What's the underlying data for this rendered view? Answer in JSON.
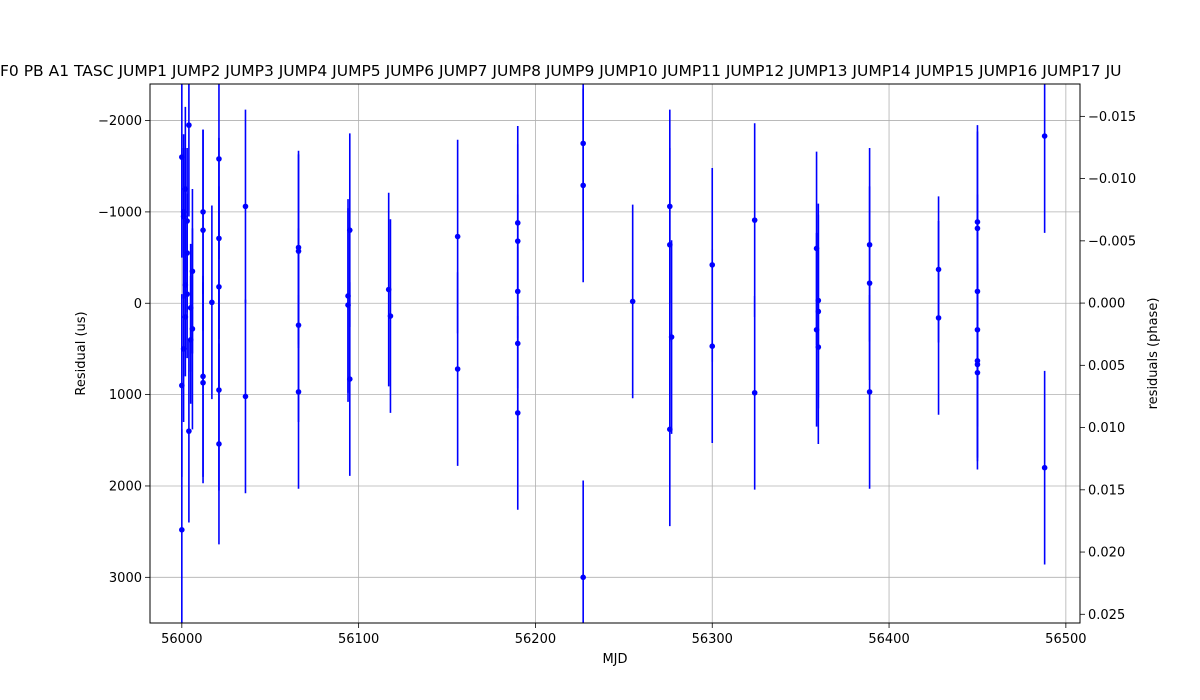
{
  "chart_data": {
    "type": "scatter",
    "title": "F0 PB A1 TASC JUMP1 JUMP2 JUMP3 JUMP4 JUMP5 JUMP6 JUMP7 JUMP8 JUMP9 JUMP10 JUMP11 JUMP12 JUMP13 JUMP14 JUMP15 JUMP16 JUMP17 JU",
    "xlabel": "MJD",
    "ylabel": "Residual (us)",
    "y2label": "residuals (phase)",
    "xlim": [
      55982,
      56508
    ],
    "ylim": [
      3500,
      -2400
    ],
    "y_inverted": true,
    "y2lim": [
      0.0257,
      -0.0176
    ],
    "grid": true,
    "color": "#0000ff",
    "x_ticks": [
      56000,
      56100,
      56200,
      56300,
      56400,
      56500
    ],
    "x_tick_labels": [
      "56000",
      "56100",
      "56200",
      "56300",
      "56400",
      "56500"
    ],
    "y_ticks": [
      -2000,
      -1000,
      0,
      1000,
      2000,
      3000
    ],
    "y_tick_labels": [
      "−2000",
      "−1000",
      "0",
      "1000",
      "2000",
      "3000"
    ],
    "y2_ticks": [
      -0.015,
      -0.01,
      -0.005,
      0.0,
      0.005,
      0.01,
      0.015,
      0.02,
      0.025
    ],
    "y2_tick_labels": [
      "−0.015",
      "−0.010",
      "−0.005",
      "0.000",
      "0.005",
      "0.010",
      "0.015",
      "0.020",
      "0.025"
    ],
    "series": [
      {
        "points": [
          {
            "x": 56000,
            "y": 2480,
            "err": 1100
          },
          {
            "x": 56000,
            "y": 900,
            "err": 1000
          },
          {
            "x": 56000,
            "y": -1600,
            "err": 1100
          },
          {
            "x": 56001,
            "y": -1000,
            "err": 700
          },
          {
            "x": 56001,
            "y": -950,
            "err": 900
          },
          {
            "x": 56001,
            "y": 500,
            "err": 800
          },
          {
            "x": 56002,
            "y": -1250,
            "err": 900
          },
          {
            "x": 56002,
            "y": -200,
            "err": 700
          },
          {
            "x": 56002,
            "y": 150,
            "err": 650
          },
          {
            "x": 56003,
            "y": -900,
            "err": 800
          },
          {
            "x": 56003,
            "y": -550,
            "err": 650
          },
          {
            "x": 56003,
            "y": -100,
            "err": 700
          },
          {
            "x": 56004,
            "y": -1950,
            "err": 1000
          },
          {
            "x": 56004,
            "y": 1400,
            "err": 1000
          },
          {
            "x": 56005,
            "y": 50,
            "err": 700
          },
          {
            "x": 56005,
            "y": 400,
            "err": 700
          },
          {
            "x": 56006,
            "y": -350,
            "err": 900
          },
          {
            "x": 56006,
            "y": 280,
            "err": 1100
          },
          {
            "x": 56012,
            "y": -1000,
            "err": 900
          },
          {
            "x": 56012,
            "y": -800,
            "err": 1100
          },
          {
            "x": 56012,
            "y": 800,
            "err": 1100
          },
          {
            "x": 56012,
            "y": 870,
            "err": 1100
          },
          {
            "x": 56017,
            "y": -10,
            "err": 1060
          },
          {
            "x": 56021,
            "y": -1580,
            "err": 1100
          },
          {
            "x": 56021,
            "y": -710,
            "err": 1100
          },
          {
            "x": 56021,
            "y": -180,
            "err": 1100
          },
          {
            "x": 56021,
            "y": 950,
            "err": 1100
          },
          {
            "x": 56021,
            "y": 1540,
            "err": 1100
          },
          {
            "x": 56036,
            "y": -1060,
            "err": 1060
          },
          {
            "x": 56036,
            "y": 1020,
            "err": 1060
          },
          {
            "x": 56066,
            "y": -610,
            "err": 1060
          },
          {
            "x": 56066,
            "y": -570,
            "err": 1060
          },
          {
            "x": 56066,
            "y": 240,
            "err": 1060
          },
          {
            "x": 56066,
            "y": 970,
            "err": 1060
          },
          {
            "x": 56094,
            "y": -80,
            "err": 1060
          },
          {
            "x": 56094,
            "y": 20,
            "err": 1060
          },
          {
            "x": 56095,
            "y": -800,
            "err": 1060
          },
          {
            "x": 56095,
            "y": 830,
            "err": 1060
          },
          {
            "x": 56117,
            "y": -150,
            "err": 1060
          },
          {
            "x": 56118,
            "y": 140,
            "err": 1060
          },
          {
            "x": 56156,
            "y": -730,
            "err": 1060
          },
          {
            "x": 56156,
            "y": 720,
            "err": 1060
          },
          {
            "x": 56190,
            "y": -880,
            "err": 1060
          },
          {
            "x": 56190,
            "y": -680,
            "err": 1060
          },
          {
            "x": 56190,
            "y": -130,
            "err": 1060
          },
          {
            "x": 56190,
            "y": 440,
            "err": 1060
          },
          {
            "x": 56190,
            "y": 1200,
            "err": 1060
          },
          {
            "x": 56227,
            "y": -1750,
            "err": 1060
          },
          {
            "x": 56227,
            "y": -1290,
            "err": 1060
          },
          {
            "x": 56227,
            "y": 3000,
            "err": 1060
          },
          {
            "x": 56255,
            "y": -20,
            "err": 1060
          },
          {
            "x": 56276,
            "y": -1060,
            "err": 1060
          },
          {
            "x": 56276,
            "y": -640,
            "err": 1060
          },
          {
            "x": 56276,
            "y": 1380,
            "err": 1060
          },
          {
            "x": 56277,
            "y": 370,
            "err": 1060
          },
          {
            "x": 56300,
            "y": -420,
            "err": 1060
          },
          {
            "x": 56300,
            "y": 470,
            "err": 1060
          },
          {
            "x": 56324,
            "y": -910,
            "err": 1060
          },
          {
            "x": 56324,
            "y": 980,
            "err": 1060
          },
          {
            "x": 56359,
            "y": -600,
            "err": 1060
          },
          {
            "x": 56359,
            "y": 290,
            "err": 1060
          },
          {
            "x": 56360,
            "y": -30,
            "err": 1060
          },
          {
            "x": 56360,
            "y": 90,
            "err": 1060
          },
          {
            "x": 56360,
            "y": 480,
            "err": 1060
          },
          {
            "x": 56389,
            "y": -640,
            "err": 1060
          },
          {
            "x": 56389,
            "y": -220,
            "err": 1060
          },
          {
            "x": 56389,
            "y": 970,
            "err": 1060
          },
          {
            "x": 56428,
            "y": -370,
            "err": 800
          },
          {
            "x": 56428,
            "y": 160,
            "err": 1060
          },
          {
            "x": 56450,
            "y": -890,
            "err": 1060
          },
          {
            "x": 56450,
            "y": -820,
            "err": 1060
          },
          {
            "x": 56450,
            "y": -130,
            "err": 1060
          },
          {
            "x": 56450,
            "y": 290,
            "err": 1060
          },
          {
            "x": 56450,
            "y": 630,
            "err": 1060
          },
          {
            "x": 56450,
            "y": 670,
            "err": 1060
          },
          {
            "x": 56450,
            "y": 760,
            "err": 1060
          },
          {
            "x": 56488,
            "y": -1830,
            "err": 1060
          },
          {
            "x": 56488,
            "y": 1800,
            "err": 1060
          }
        ]
      }
    ]
  }
}
